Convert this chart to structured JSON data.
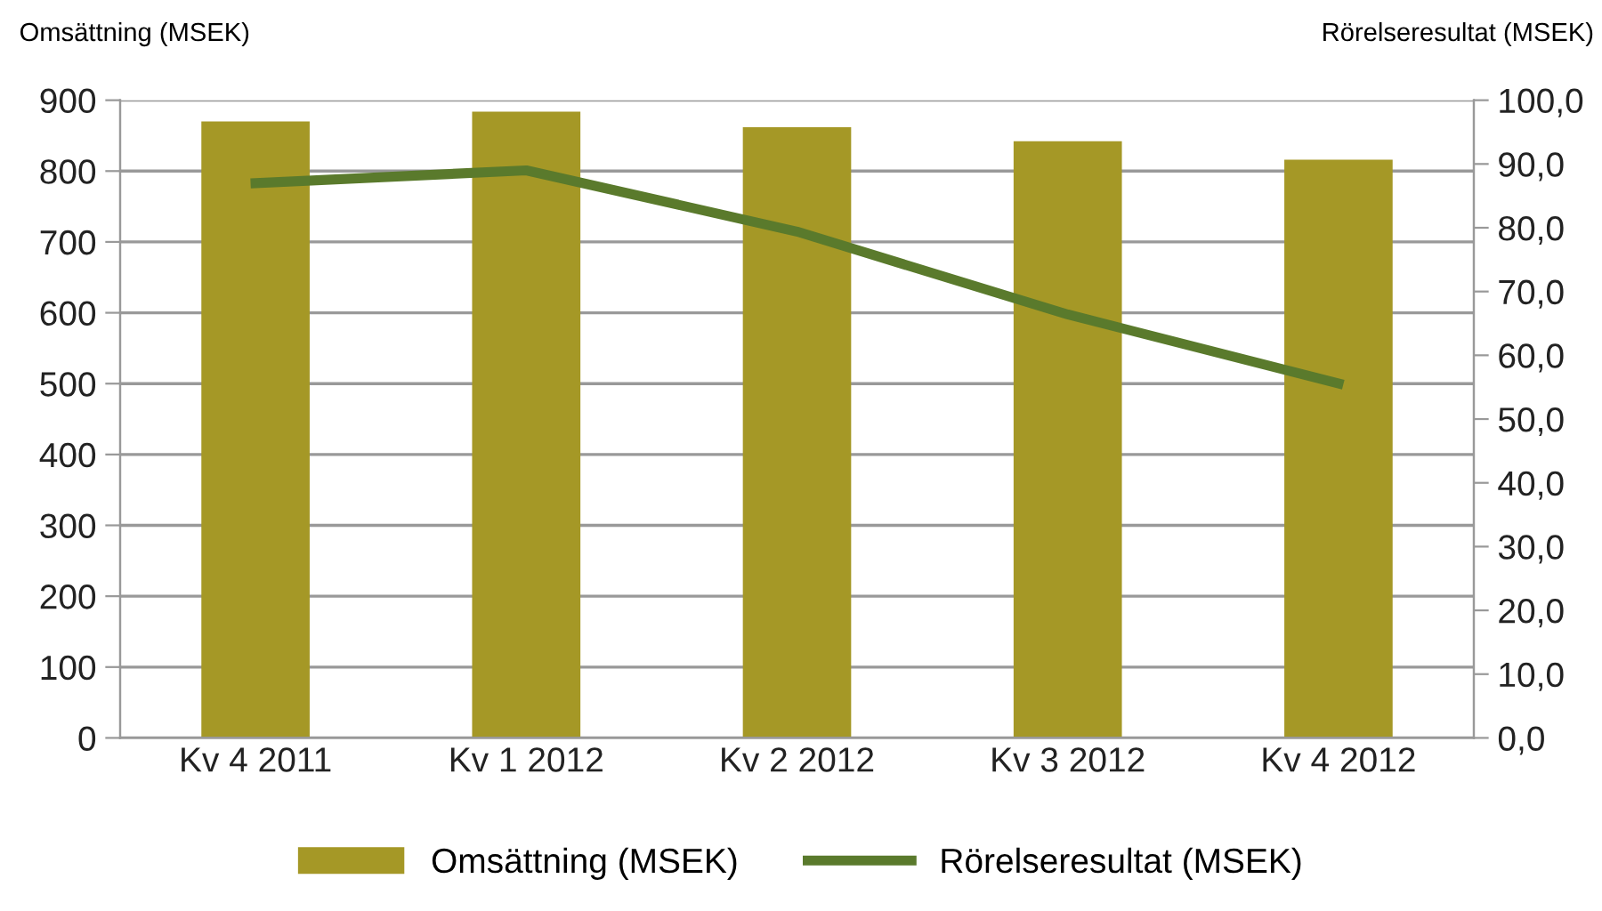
{
  "chart_data": {
    "type": "bar",
    "ylabel": "Omsättning (MSEK)",
    "y2label": "Rörelseresultat (MSEK)",
    "categories": [
      "Kv 4 2011",
      "Kv 1 2012",
      "Kv 2 2012",
      "Kv 3 2012",
      "Kv 4 2012"
    ],
    "series": [
      {
        "name": "Omsättning (MSEK)",
        "color": "#a59826",
        "values": [
          870,
          884,
          862,
          842,
          816
        ]
      },
      {
        "name": "Rörelseresultat (MSEK)",
        "type": "line",
        "axis": "y2",
        "color": "#5a7a2c",
        "values": [
          87.0,
          89.0,
          79.4,
          66.4,
          55.6
        ]
      }
    ],
    "ylim": [
      0,
      900
    ],
    "yticks": [
      0,
      100,
      200,
      300,
      400,
      500,
      600,
      700,
      800,
      900
    ],
    "y2lim": [
      0,
      100
    ],
    "y2ticks": [
      {
        "value": 0,
        "label": "0,0"
      },
      {
        "value": 10,
        "label": "10,0"
      },
      {
        "value": 20,
        "label": "20,0"
      },
      {
        "value": 30,
        "label": "30,0"
      },
      {
        "value": 40,
        "label": "40,0"
      },
      {
        "value": 50,
        "label": "50,0"
      },
      {
        "value": 60,
        "label": "60,0"
      },
      {
        "value": 70,
        "label": "70,0"
      },
      {
        "value": 80,
        "label": "80,0"
      },
      {
        "value": 90,
        "label": "90,0"
      },
      {
        "value": 100,
        "label": "100,0"
      }
    ],
    "grid": "y",
    "legend": "bottom",
    "marker": "none",
    "line_style": "solid"
  }
}
